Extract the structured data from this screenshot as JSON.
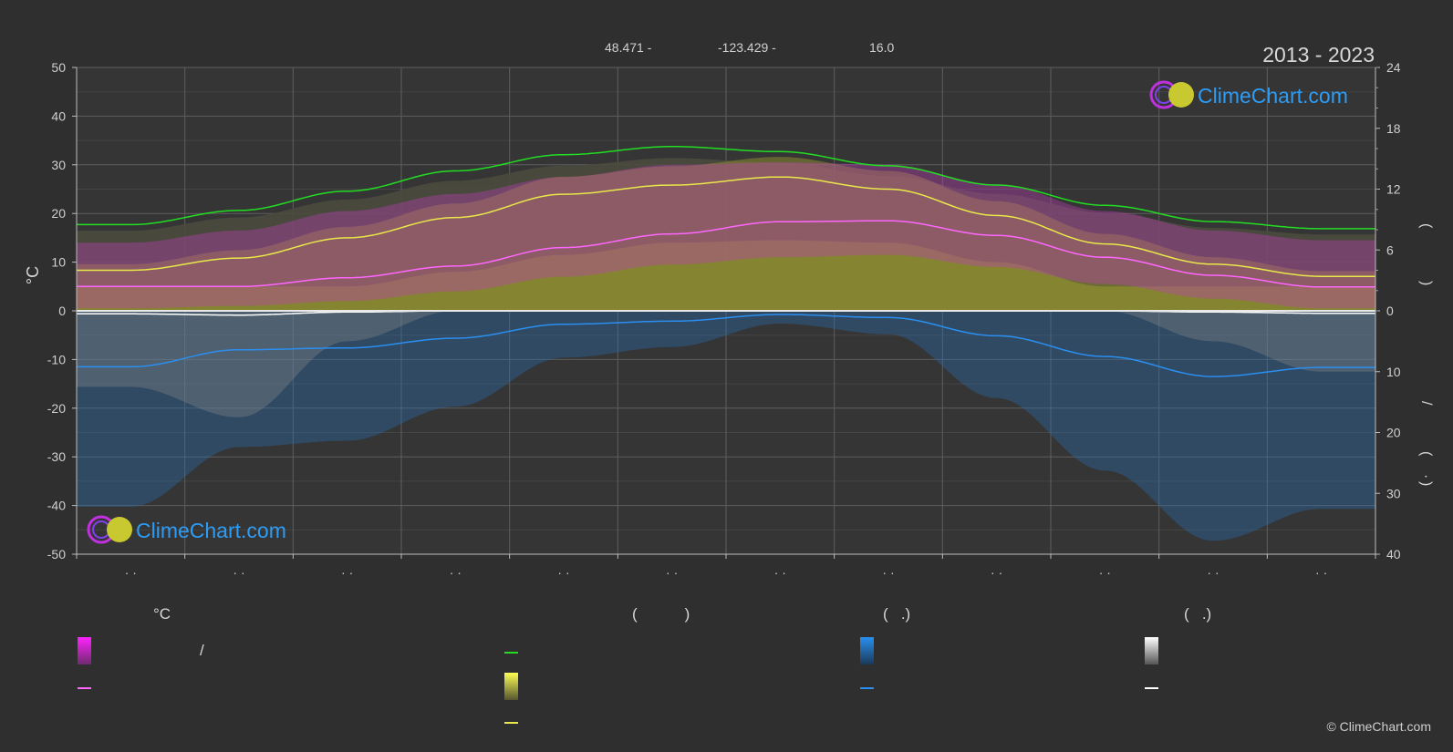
{
  "chart_data": {
    "type": "area",
    "header": {
      "lat": "48.471 -",
      "lon": "-123.429 -",
      "elevation": "16.0",
      "years": "2013 - 2023"
    },
    "logo_text": "ClimeChart.com",
    "copyright": "© ClimeChart.com",
    "left_axis": {
      "label": "°C",
      "ticks": [
        50,
        40,
        30,
        20,
        10,
        0,
        -10,
        -20,
        -30,
        -40,
        -50
      ],
      "ylim": [
        -50,
        50
      ]
    },
    "right_axis_top": {
      "ticks": [
        24,
        18,
        12,
        6,
        0
      ],
      "ylim": [
        0,
        24
      ],
      "label_glyphs": [
        "(",
        ")"
      ]
    },
    "right_axis_bottom": {
      "ticks": [
        0,
        10,
        20,
        30,
        40
      ],
      "ylim": [
        0,
        40
      ],
      "label_glyphs": [
        "/",
        "(",
        "·",
        ")"
      ]
    },
    "month_labels": [
      "· ·",
      "· ·",
      "· ·",
      "· ·",
      "· ·",
      "· ·",
      "· ·",
      "· ·",
      "· ·",
      "· ·",
      "· ·",
      "· ·"
    ],
    "series": [
      {
        "name": "daylight",
        "color": "#22dd22",
        "unit": "hours",
        "values": [
          8.5,
          9.9,
          11.8,
          13.8,
          15.4,
          16.2,
          15.7,
          14.3,
          12.4,
          10.4,
          8.8,
          8.1
        ]
      },
      {
        "name": "sunshine",
        "color": "#e8e84a",
        "unit": "hours",
        "values": [
          4.0,
          5.2,
          7.2,
          9.2,
          11.5,
          12.4,
          13.2,
          12.0,
          9.4,
          6.6,
          4.6,
          3.4
        ]
      },
      {
        "name": "mean_temperature",
        "color": "#ff66ff",
        "unit": "°C",
        "values": [
          5.0,
          5.0,
          6.8,
          9.2,
          13.0,
          15.8,
          18.3,
          18.5,
          15.5,
          11.0,
          7.3,
          4.9
        ]
      },
      {
        "name": "precipitation",
        "color": "#2a8ff0",
        "unit": "mm",
        "values": [
          9.2,
          6.4,
          6.1,
          4.5,
          2.2,
          1.7,
          0.6,
          1.1,
          4.1,
          7.5,
          10.8,
          9.3
        ]
      },
      {
        "name": "snowfall",
        "color": "#ffffff",
        "unit": "mm",
        "values": [
          0.5,
          0.7,
          0.2,
          0.0,
          0.0,
          0.0,
          0.0,
          0.0,
          0.0,
          0.0,
          0.2,
          0.4
        ]
      }
    ],
    "temperature_band": {
      "max": [
        14.0,
        16.5,
        20.5,
        24.0,
        27.5,
        30.0,
        30.5,
        30.0,
        26.0,
        20.5,
        16.5,
        14.5
      ],
      "min": [
        0.5,
        1.0,
        2.0,
        4.0,
        7.0,
        9.5,
        11.0,
        11.5,
        9.0,
        5.5,
        2.5,
        0.5
      ]
    },
    "grid": true
  },
  "legend": {
    "col1_header": "°C",
    "col2_header": "(           )",
    "col3_header": "(   .)",
    "col4_header": "(   .)",
    "col1_item1": "/",
    "colors": {
      "temp_band": "#e020e0",
      "mean_temp": "#ff66ff",
      "daylight": "#22dd22",
      "sun_band": "#e8e84a",
      "sun_line": "#e8e84a",
      "precip_band": "#2a8ff0",
      "precip_line": "#2a8ff0",
      "snow_band": "#ffffff",
      "snow_line": "#ffffff"
    }
  }
}
